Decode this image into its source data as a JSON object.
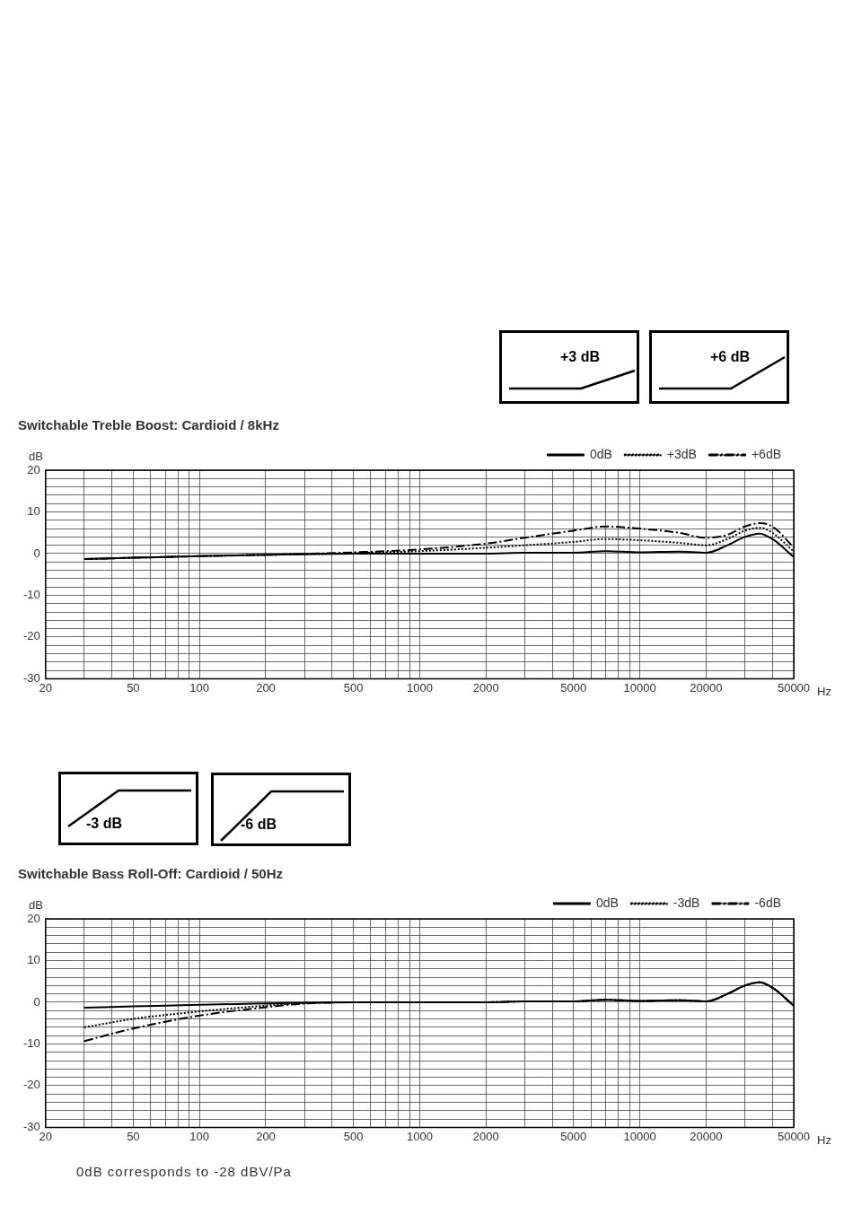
{
  "chart_data": [
    {
      "type": "line",
      "title": "Switchable Treble Boost: Cardioid / 8kHz",
      "ylabel": "dB",
      "xlabel": "Hz",
      "log": "x",
      "grid": true,
      "legend": "top right",
      "marker": "none",
      "xlim": [
        20,
        50000
      ],
      "xticks": [
        20,
        {
          "value": 30,
          "label": null
        },
        {
          "value": 40,
          "label": null
        },
        50,
        {
          "value": 60,
          "label": null
        },
        {
          "value": 70,
          "label": null
        },
        {
          "value": 80,
          "label": null
        },
        {
          "value": 90,
          "label": null
        },
        100,
        200,
        {
          "value": 300,
          "label": null
        },
        {
          "value": 400,
          "label": null
        },
        500,
        {
          "value": 600,
          "label": null
        },
        {
          "value": 700,
          "label": null
        },
        {
          "value": 800,
          "label": null
        },
        {
          "value": 900,
          "label": null
        },
        1000,
        2000,
        {
          "value": 3000,
          "label": null
        },
        {
          "value": 4000,
          "label": null
        },
        5000,
        {
          "value": 6000,
          "label": null
        },
        {
          "value": 7000,
          "label": null
        },
        {
          "value": 8000,
          "label": null
        },
        {
          "value": 9000,
          "label": null
        },
        10000,
        20000,
        {
          "value": 30000,
          "label": null
        },
        {
          "value": 40000,
          "label": null
        },
        50000
      ],
      "ylim": [
        -30,
        20
      ],
      "yticks": [
        -30,
        {
          "value": -28,
          "label": null
        },
        {
          "value": -26,
          "label": null
        },
        {
          "value": -24,
          "label": null
        },
        {
          "value": -22,
          "label": null
        },
        -20,
        {
          "value": -18,
          "label": null
        },
        {
          "value": -16,
          "label": null
        },
        {
          "value": -14,
          "label": null
        },
        {
          "value": -12,
          "label": null
        },
        -10,
        {
          "value": -8,
          "label": null
        },
        {
          "value": -6,
          "label": null
        },
        {
          "value": -4,
          "label": null
        },
        {
          "value": -2,
          "label": null
        },
        0,
        {
          "value": 2,
          "label": null
        },
        {
          "value": 4,
          "label": null
        },
        {
          "value": 6,
          "label": null
        },
        {
          "value": 8,
          "label": null
        },
        10,
        {
          "value": 12,
          "label": null
        },
        {
          "value": 14,
          "label": null
        },
        {
          "value": 16,
          "label": null
        },
        {
          "value": 18,
          "label": null
        },
        20
      ],
      "annotations": [
        "+3 dB",
        "+6 dB"
      ],
      "series": [
        {
          "name": "0dB",
          "color": "#000000",
          "line_style": "solid",
          "x": [
            30,
            50,
            100,
            200,
            500,
            1000,
            2000,
            3000,
            5000,
            7000,
            10000,
            15000,
            20000,
            25000,
            30000,
            35000,
            40000,
            50000
          ],
          "values": [
            -1.3,
            -1,
            -0.6,
            -0.3,
            0,
            0,
            0,
            0.2,
            0.2,
            0.6,
            0.3,
            0.5,
            0.2,
            2,
            4,
            4.8,
            3.5,
            -0.8
          ]
        },
        {
          "name": "+3dB",
          "color": "#000000",
          "line_style": "dotted",
          "x": [
            30,
            50,
            100,
            200,
            500,
            1000,
            2000,
            3000,
            5000,
            7000,
            10000,
            15000,
            20000,
            25000,
            30000,
            35000,
            40000,
            50000
          ],
          "values": [
            -1.3,
            -1,
            -0.6,
            -0.3,
            0.1,
            0.6,
            1.4,
            2,
            2.8,
            3.5,
            3.2,
            2.6,
            2,
            3.5,
            5.5,
            6.2,
            5,
            0.5
          ]
        },
        {
          "name": "+6dB",
          "color": "#000000",
          "line_style": "dashed",
          "x": [
            30,
            50,
            100,
            200,
            500,
            1000,
            2000,
            3000,
            5000,
            7000,
            10000,
            15000,
            20000,
            25000,
            30000,
            35000,
            40000,
            50000
          ],
          "values": [
            -1.3,
            -1,
            -0.6,
            -0.3,
            0.3,
            1,
            2.4,
            3.8,
            5.5,
            6.5,
            6,
            5,
            3.8,
            4.5,
            6.5,
            7.3,
            6.5,
            1.5
          ]
        }
      ]
    },
    {
      "type": "line",
      "title": "Switchable Bass Roll-Off: Cardioid / 50Hz",
      "ylabel": "dB",
      "xlabel": "Hz",
      "log": "x",
      "grid": true,
      "legend": "top right",
      "marker": "none",
      "xlim": [
        20,
        50000
      ],
      "xticks": [
        20,
        {
          "value": 30,
          "label": null
        },
        {
          "value": 40,
          "label": null
        },
        50,
        {
          "value": 60,
          "label": null
        },
        {
          "value": 70,
          "label": null
        },
        {
          "value": 80,
          "label": null
        },
        {
          "value": 90,
          "label": null
        },
        100,
        200,
        {
          "value": 300,
          "label": null
        },
        {
          "value": 400,
          "label": null
        },
        500,
        {
          "value": 600,
          "label": null
        },
        {
          "value": 700,
          "label": null
        },
        {
          "value": 800,
          "label": null
        },
        {
          "value": 900,
          "label": null
        },
        1000,
        2000,
        {
          "value": 3000,
          "label": null
        },
        {
          "value": 4000,
          "label": null
        },
        5000,
        {
          "value": 6000,
          "label": null
        },
        {
          "value": 7000,
          "label": null
        },
        {
          "value": 8000,
          "label": null
        },
        {
          "value": 9000,
          "label": null
        },
        10000,
        20000,
        {
          "value": 30000,
          "label": null
        },
        {
          "value": 40000,
          "label": null
        },
        50000
      ],
      "ylim": [
        -30,
        20
      ],
      "yticks": [
        -30,
        {
          "value": -28,
          "label": null
        },
        {
          "value": -26,
          "label": null
        },
        {
          "value": -24,
          "label": null
        },
        {
          "value": -22,
          "label": null
        },
        -20,
        {
          "value": -18,
          "label": null
        },
        {
          "value": -16,
          "label": null
        },
        {
          "value": -14,
          "label": null
        },
        {
          "value": -12,
          "label": null
        },
        -10,
        {
          "value": -8,
          "label": null
        },
        {
          "value": -6,
          "label": null
        },
        {
          "value": -4,
          "label": null
        },
        {
          "value": -2,
          "label": null
        },
        0,
        {
          "value": 2,
          "label": null
        },
        {
          "value": 4,
          "label": null
        },
        {
          "value": 6,
          "label": null
        },
        {
          "value": 8,
          "label": null
        },
        10,
        {
          "value": 12,
          "label": null
        },
        {
          "value": 14,
          "label": null
        },
        {
          "value": 16,
          "label": null
        },
        {
          "value": 18,
          "label": null
        },
        20
      ],
      "annotations": [
        "-3 dB",
        "-6 dB",
        "0dB corresponds to -28 dBV/Pa"
      ],
      "series": [
        {
          "name": "0dB",
          "color": "#000000",
          "line_style": "solid",
          "x": [
            30,
            50,
            100,
            200,
            500,
            1000,
            2000,
            3000,
            5000,
            7000,
            10000,
            15000,
            20000,
            25000,
            30000,
            35000,
            40000,
            50000
          ],
          "values": [
            -1.3,
            -1,
            -0.6,
            -0.3,
            0,
            0,
            0,
            0.2,
            0.2,
            0.6,
            0.3,
            0.5,
            0.2,
            2,
            4,
            4.8,
            3.5,
            -0.8
          ]
        },
        {
          "name": "-3dB",
          "color": "#000000",
          "line_style": "dotted",
          "x": [
            30,
            50,
            100,
            200,
            300,
            500,
            1000,
            2000,
            3000,
            5000,
            7000,
            10000,
            15000,
            20000,
            25000,
            30000,
            35000,
            40000,
            50000
          ],
          "values": [
            -6,
            -4,
            -2.2,
            -0.8,
            -0.2,
            0,
            0,
            0,
            0.2,
            0.2,
            0.6,
            0.3,
            0.5,
            0.2,
            2,
            4,
            4.8,
            3.5,
            -0.8
          ]
        },
        {
          "name": "-6dB",
          "color": "#000000",
          "line_style": "dashed",
          "x": [
            30,
            50,
            100,
            200,
            300,
            500,
            1000,
            2000,
            3000,
            5000,
            7000,
            10000,
            15000,
            20000,
            25000,
            30000,
            35000,
            40000,
            50000
          ],
          "values": [
            -9.3,
            -6.3,
            -3.2,
            -1.2,
            -0.3,
            0,
            0,
            0,
            0.2,
            0.2,
            0.6,
            0.3,
            0.5,
            0.2,
            2,
            4,
            4.8,
            3.5,
            -0.8
          ]
        }
      ]
    }
  ]
}
